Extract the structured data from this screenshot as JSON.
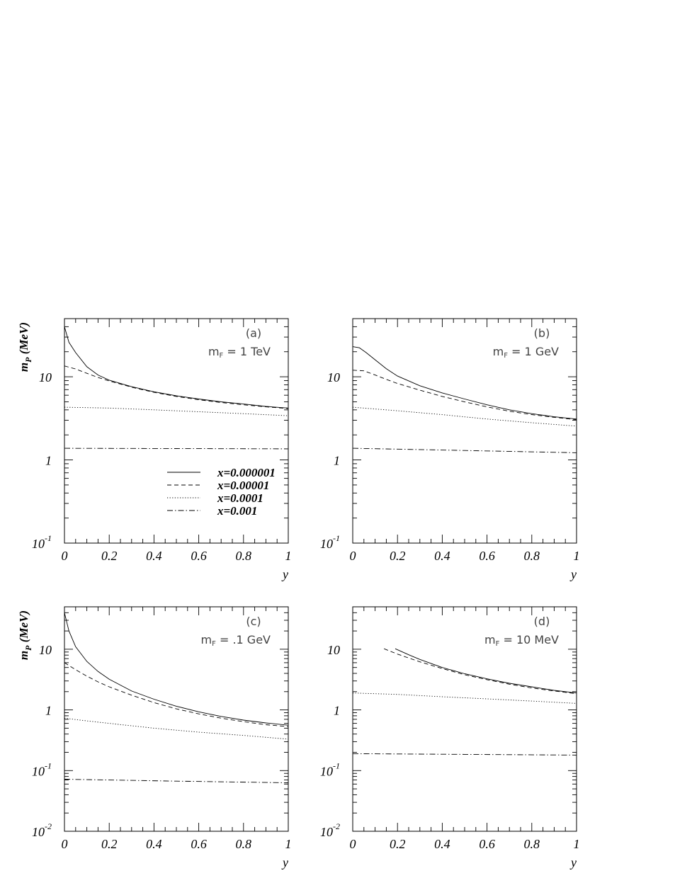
{
  "chart_data": [
    {
      "type": "line",
      "panel_label": "(a)",
      "annotation": {
        "main": "m",
        "sub": "F",
        "rest": " = 1 TeV"
      },
      "ylabel": {
        "main": "m",
        "sub": "P",
        "rest": " (MeV)"
      },
      "xlabel": "y",
      "xlim": [
        0,
        1
      ],
      "ylim": [
        0.1,
        50
      ],
      "yscale": "log",
      "xticks": [
        "0",
        "0.2",
        "0.4",
        "0.6",
        "0.8",
        "1"
      ],
      "yticks": [
        {
          "base": "10",
          "exp": "-1"
        },
        {
          "base": "1",
          "exp": ""
        },
        {
          "base": "10",
          "exp": ""
        }
      ],
      "legend": {
        "placement": "lower-center",
        "entries": [
          "x=0.000001",
          "x=0.00001",
          "x=0.0001",
          "x=0.001"
        ]
      },
      "series": [
        {
          "name": "x=0.000001",
          "style": "solid",
          "points": [
            [
              0,
              40
            ],
            [
              0.02,
              26
            ],
            [
              0.05,
              19.5
            ],
            [
              0.1,
              13.2
            ],
            [
              0.15,
              10.5
            ],
            [
              0.2,
              9.1
            ],
            [
              0.3,
              7.6
            ],
            [
              0.4,
              6.6
            ],
            [
              0.5,
              5.9
            ],
            [
              0.6,
              5.4
            ],
            [
              0.7,
              5.0
            ],
            [
              0.8,
              4.7
            ],
            [
              0.9,
              4.4
            ],
            [
              1.0,
              4.2
            ]
          ]
        },
        {
          "name": "x=0.00001",
          "style": "dashed",
          "points": [
            [
              0,
              13.5
            ],
            [
              0.05,
              12.4
            ],
            [
              0.1,
              11.0
            ],
            [
              0.15,
              9.8
            ],
            [
              0.2,
              8.9
            ],
            [
              0.3,
              7.5
            ],
            [
              0.4,
              6.5
            ],
            [
              0.5,
              5.8
            ],
            [
              0.6,
              5.3
            ],
            [
              0.7,
              4.9
            ],
            [
              0.8,
              4.6
            ],
            [
              0.9,
              4.35
            ],
            [
              1.0,
              4.15
            ]
          ]
        },
        {
          "name": "x=0.0001",
          "style": "dotted",
          "points": [
            [
              0,
              4.3
            ],
            [
              0.2,
              4.2
            ],
            [
              0.4,
              4.0
            ],
            [
              0.6,
              3.8
            ],
            [
              0.8,
              3.6
            ],
            [
              1.0,
              3.4
            ]
          ]
        },
        {
          "name": "x=0.001",
          "style": "dashdot",
          "points": [
            [
              0,
              1.38
            ],
            [
              0.5,
              1.37
            ],
            [
              1.0,
              1.36
            ]
          ]
        }
      ]
    },
    {
      "type": "line",
      "panel_label": "(b)",
      "annotation": {
        "main": "m",
        "sub": "F",
        "rest": " = 1 GeV"
      },
      "xlabel": "y",
      "xlim": [
        0,
        1
      ],
      "ylim": [
        0.1,
        50
      ],
      "yscale": "log",
      "xticks": [
        "0",
        "0.2",
        "0.4",
        "0.6",
        "0.8",
        "1"
      ],
      "yticks": [
        {
          "base": "10",
          "exp": "-1"
        },
        {
          "base": "1",
          "exp": ""
        },
        {
          "base": "10",
          "exp": ""
        }
      ],
      "series": [
        {
          "name": "x=0.000001",
          "style": "solid",
          "points": [
            [
              0,
              23
            ],
            [
              0.03,
              22.3
            ],
            [
              0.06,
              19.5
            ],
            [
              0.1,
              16
            ],
            [
              0.15,
              12.5
            ],
            [
              0.2,
              10.2
            ],
            [
              0.3,
              7.8
            ],
            [
              0.4,
              6.4
            ],
            [
              0.5,
              5.4
            ],
            [
              0.6,
              4.6
            ],
            [
              0.7,
              4.0
            ],
            [
              0.8,
              3.6
            ],
            [
              0.9,
              3.3
            ],
            [
              1.0,
              3.1
            ]
          ]
        },
        {
          "name": "x=0.00001",
          "style": "dashed",
          "points": [
            [
              0,
              12
            ],
            [
              0.05,
              11.8
            ],
            [
              0.1,
              10.5
            ],
            [
              0.15,
              9.3
            ],
            [
              0.2,
              8.3
            ],
            [
              0.3,
              6.9
            ],
            [
              0.4,
              5.8
            ],
            [
              0.5,
              5.0
            ],
            [
              0.6,
              4.35
            ],
            [
              0.7,
              3.85
            ],
            [
              0.8,
              3.5
            ],
            [
              0.9,
              3.25
            ],
            [
              1.0,
              3.05
            ]
          ]
        },
        {
          "name": "x=0.0001",
          "style": "dotted",
          "points": [
            [
              0,
              4.3
            ],
            [
              0.2,
              3.9
            ],
            [
              0.4,
              3.5
            ],
            [
              0.6,
              3.1
            ],
            [
              0.8,
              2.8
            ],
            [
              1.0,
              2.55
            ]
          ]
        },
        {
          "name": "x=0.001",
          "style": "dashdot",
          "points": [
            [
              0,
              1.38
            ],
            [
              0.5,
              1.3
            ],
            [
              1.0,
              1.22
            ]
          ]
        }
      ]
    },
    {
      "type": "line",
      "panel_label": "(c)",
      "annotation": {
        "main": "m",
        "sub": "F",
        "rest": " = .1 GeV"
      },
      "ylabel": {
        "main": "m",
        "sub": "P",
        "rest": " (MeV)"
      },
      "xlabel": "y",
      "xlim": [
        0,
        1
      ],
      "ylim": [
        0.01,
        50
      ],
      "yscale": "log",
      "xticks": [
        "0",
        "0.2",
        "0.4",
        "0.6",
        "0.8",
        "1"
      ],
      "yticks": [
        {
          "base": "10",
          "exp": "-2"
        },
        {
          "base": "10",
          "exp": "-1"
        },
        {
          "base": "1",
          "exp": ""
        },
        {
          "base": "10",
          "exp": ""
        }
      ],
      "series": [
        {
          "name": "x=0.000001",
          "style": "solid",
          "points": [
            [
              0,
              40
            ],
            [
              0.02,
              20
            ],
            [
              0.05,
              11
            ],
            [
              0.1,
              6.3
            ],
            [
              0.15,
              4.3
            ],
            [
              0.2,
              3.2
            ],
            [
              0.3,
              2.05
            ],
            [
              0.4,
              1.5
            ],
            [
              0.5,
              1.15
            ],
            [
              0.6,
              0.93
            ],
            [
              0.7,
              0.78
            ],
            [
              0.8,
              0.68
            ],
            [
              0.9,
              0.61
            ],
            [
              1.0,
              0.56
            ]
          ]
        },
        {
          "name": "x=0.00001",
          "style": "dashed",
          "points": [
            [
              0,
              6
            ],
            [
              0.05,
              4.6
            ],
            [
              0.1,
              3.6
            ],
            [
              0.15,
              2.9
            ],
            [
              0.2,
              2.4
            ],
            [
              0.3,
              1.75
            ],
            [
              0.4,
              1.32
            ],
            [
              0.5,
              1.04
            ],
            [
              0.6,
              0.86
            ],
            [
              0.7,
              0.73
            ],
            [
              0.8,
              0.64
            ],
            [
              0.9,
              0.57
            ],
            [
              1.0,
              0.53
            ]
          ]
        },
        {
          "name": "x=0.0001",
          "style": "dotted",
          "points": [
            [
              0,
              0.73
            ],
            [
              0.1,
              0.66
            ],
            [
              0.2,
              0.6
            ],
            [
              0.4,
              0.5
            ],
            [
              0.6,
              0.43
            ],
            [
              0.8,
              0.38
            ],
            [
              1.0,
              0.33
            ]
          ]
        },
        {
          "name": "x=0.001",
          "style": "dashdot",
          "points": [
            [
              0,
              0.072
            ],
            [
              0.5,
              0.067
            ],
            [
              1.0,
              0.063
            ]
          ]
        }
      ]
    },
    {
      "type": "line",
      "panel_label": "(d)",
      "annotation": {
        "main": "m",
        "sub": "F",
        "rest": " = 10 MeV"
      },
      "xlabel": "y",
      "xlim": [
        0,
        1
      ],
      "ylim": [
        0.01,
        50
      ],
      "yscale": "log",
      "xticks": [
        "0",
        "0.2",
        "0.4",
        "0.6",
        "0.8",
        "1"
      ],
      "yticks": [
        {
          "base": "10",
          "exp": "-2"
        },
        {
          "base": "10",
          "exp": "-1"
        },
        {
          "base": "1",
          "exp": ""
        },
        {
          "base": "10",
          "exp": ""
        }
      ],
      "series": [
        {
          "name": "x=0.000001",
          "style": "solid",
          "points": [
            [
              0.19,
              10.2
            ],
            [
              0.25,
              8.1
            ],
            [
              0.3,
              6.8
            ],
            [
              0.4,
              5.0
            ],
            [
              0.5,
              3.95
            ],
            [
              0.6,
              3.25
            ],
            [
              0.7,
              2.75
            ],
            [
              0.8,
              2.4
            ],
            [
              0.9,
              2.1
            ],
            [
              1.0,
              1.9
            ]
          ]
        },
        {
          "name": "x=0.00001",
          "style": "dashed",
          "points": [
            [
              0.14,
              10.2
            ],
            [
              0.2,
              8.3
            ],
            [
              0.3,
              6.2
            ],
            [
              0.4,
              4.8
            ],
            [
              0.5,
              3.8
            ],
            [
              0.6,
              3.15
            ],
            [
              0.7,
              2.65
            ],
            [
              0.8,
              2.3
            ],
            [
              0.9,
              2.05
            ],
            [
              1.0,
              1.85
            ]
          ]
        },
        {
          "name": "x=0.0001",
          "style": "dotted",
          "points": [
            [
              0,
              1.9
            ],
            [
              0.2,
              1.8
            ],
            [
              0.4,
              1.65
            ],
            [
              0.6,
              1.52
            ],
            [
              0.8,
              1.4
            ],
            [
              1.0,
              1.28
            ]
          ]
        },
        {
          "name": "x=0.001",
          "style": "dashdot",
          "points": [
            [
              0,
              0.19
            ],
            [
              0.5,
              0.185
            ],
            [
              1.0,
              0.18
            ]
          ]
        }
      ]
    }
  ]
}
